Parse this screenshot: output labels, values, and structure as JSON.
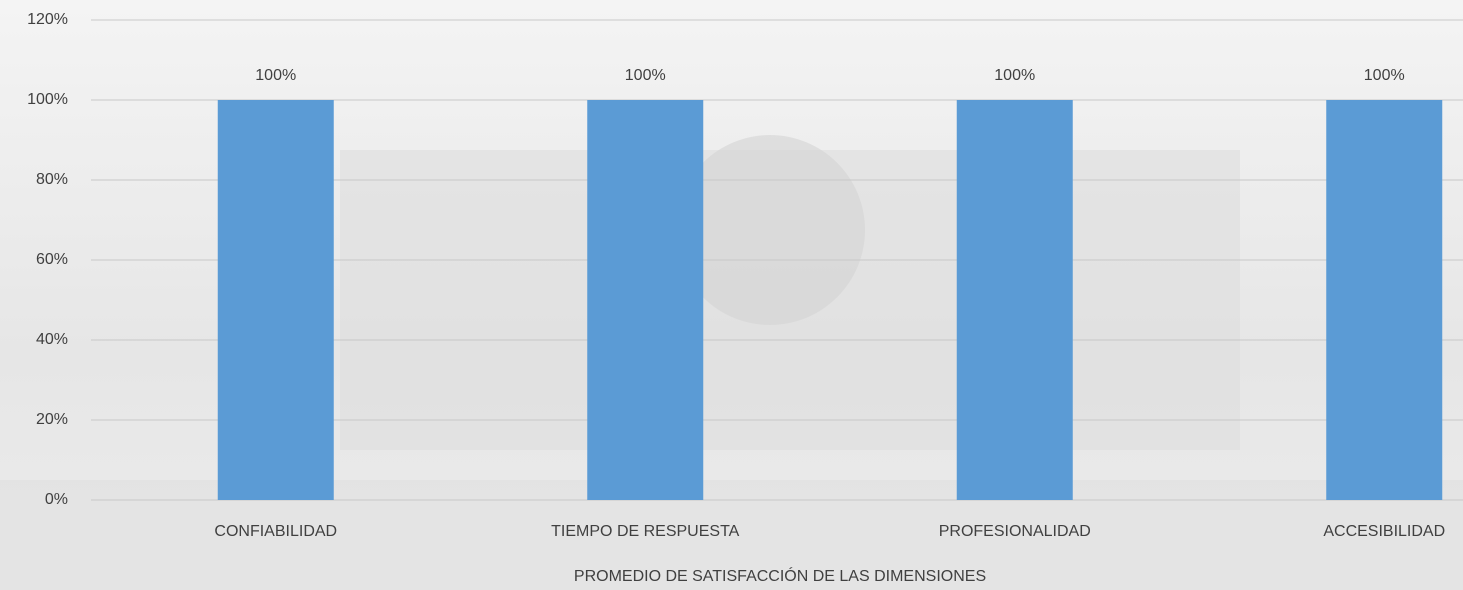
{
  "chart_data": {
    "type": "bar",
    "x_label": "PROMEDIO DE SATISFACCIÓN DE LAS DIMENSIONES",
    "categories": [
      "CONFIABILIDAD",
      "TIEMPO DE RESPUESTA",
      "PROFESIONALIDAD",
      "ACCESIBILIDAD"
    ],
    "values": [
      100,
      100,
      100,
      100
    ],
    "value_labels": [
      "100%",
      "100%",
      "100%",
      "100%"
    ],
    "color": "#5b9bd5",
    "ylim": [
      0,
      120
    ],
    "yticks": [
      {
        "value": 0,
        "label": "0%"
      },
      {
        "value": 20,
        "label": "20%"
      },
      {
        "value": 40,
        "label": "40%"
      },
      {
        "value": 60,
        "label": "60%"
      },
      {
        "value": 80,
        "label": "80%"
      },
      {
        "value": 100,
        "label": "100%"
      },
      {
        "value": 120,
        "label": "120%"
      }
    ],
    "grid": true
  }
}
